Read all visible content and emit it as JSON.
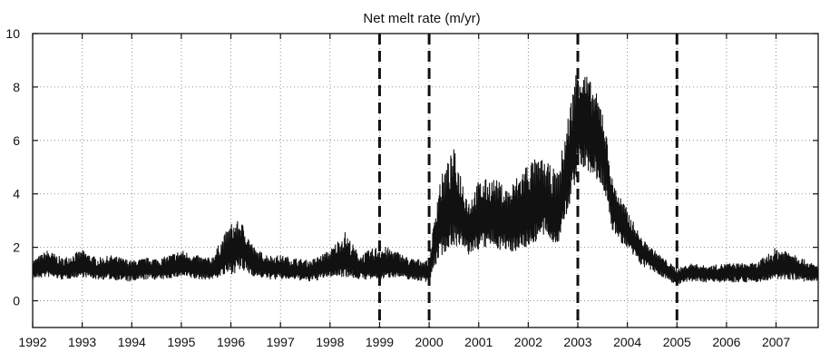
{
  "chart_data": {
    "type": "line",
    "title": "Net melt rate (m/yr)",
    "xlabel": "",
    "ylabel": "",
    "xlim": [
      1992,
      2007.85
    ],
    "ylim": [
      -1,
      10
    ],
    "x_ticks": [
      1992,
      1993,
      1994,
      1995,
      1996,
      1997,
      1998,
      1999,
      2000,
      2001,
      2002,
      2003,
      2004,
      2005,
      2006,
      2007
    ],
    "y_ticks": [
      0,
      2,
      4,
      6,
      8,
      10
    ],
    "grid": true,
    "grid_style": "dotted",
    "line_color": "#111111",
    "vertical_markers": {
      "style": "dashed",
      "x": [
        1999,
        2000,
        2003,
        2005
      ]
    },
    "series": [
      {
        "x": [
          1992.0,
          1992.3,
          1992.6,
          1993.0,
          1993.3,
          1993.6,
          1994.0,
          1994.3,
          1994.6,
          1995.0,
          1995.3,
          1995.6,
          1996.0,
          1996.2,
          1996.5,
          1996.8,
          1997.0,
          1997.3,
          1997.6,
          1998.0,
          1998.3,
          1998.6,
          1999.0,
          1999.3,
          1999.6,
          2000.0,
          2000.2,
          2000.5,
          2000.8,
          2001.0,
          2001.3,
          2001.6,
          2002.0,
          2002.3,
          2002.6,
          2002.9,
          2003.0,
          2003.2,
          2003.5,
          2003.7,
          2004.0,
          2004.3,
          2004.6,
          2005.0,
          2005.3,
          2005.6,
          2006.0,
          2006.3,
          2006.6,
          2007.0,
          2007.3,
          2007.6,
          2007.85
        ],
        "mean": [
          1.2,
          1.3,
          1.1,
          1.3,
          1.1,
          1.2,
          1.1,
          1.2,
          1.1,
          1.3,
          1.2,
          1.1,
          1.8,
          2.0,
          1.3,
          1.2,
          1.2,
          1.1,
          1.1,
          1.3,
          1.5,
          1.2,
          1.2,
          1.3,
          1.1,
          1.1,
          2.8,
          3.5,
          2.6,
          3.0,
          3.2,
          2.8,
          3.2,
          3.6,
          3.0,
          5.5,
          6.8,
          6.4,
          5.6,
          3.5,
          2.5,
          1.8,
          1.4,
          0.9,
          1.1,
          1.0,
          1.0,
          1.1,
          1.0,
          1.2,
          1.3,
          1.1,
          1.0
        ],
        "upper": [
          1.5,
          1.9,
          1.6,
          1.9,
          1.6,
          1.7,
          1.5,
          1.6,
          1.6,
          1.9,
          1.7,
          1.6,
          2.9,
          3.0,
          1.9,
          1.7,
          1.7,
          1.6,
          1.5,
          1.9,
          2.6,
          1.7,
          2.1,
          1.9,
          1.6,
          1.5,
          4.5,
          5.7,
          3.8,
          4.5,
          4.6,
          4.2,
          5.3,
          5.3,
          4.8,
          8.0,
          9.0,
          8.4,
          7.3,
          4.5,
          3.4,
          2.3,
          1.8,
          1.2,
          1.4,
          1.3,
          1.4,
          1.4,
          1.4,
          2.0,
          1.9,
          1.5,
          1.3
        ],
        "lower": [
          0.8,
          0.9,
          0.8,
          0.9,
          0.8,
          0.8,
          0.7,
          0.8,
          0.8,
          0.9,
          0.8,
          0.8,
          1.0,
          1.1,
          0.9,
          0.8,
          0.8,
          0.8,
          0.7,
          0.9,
          0.9,
          0.8,
          0.8,
          0.9,
          0.8,
          0.7,
          1.6,
          2.1,
          1.7,
          1.9,
          2.0,
          1.8,
          2.0,
          2.4,
          2.1,
          4.0,
          4.9,
          4.8,
          4.3,
          2.6,
          1.9,
          1.3,
          1.0,
          0.6,
          0.7,
          0.7,
          0.7,
          0.7,
          0.7,
          0.8,
          0.8,
          0.7,
          0.7
        ]
      }
    ]
  }
}
